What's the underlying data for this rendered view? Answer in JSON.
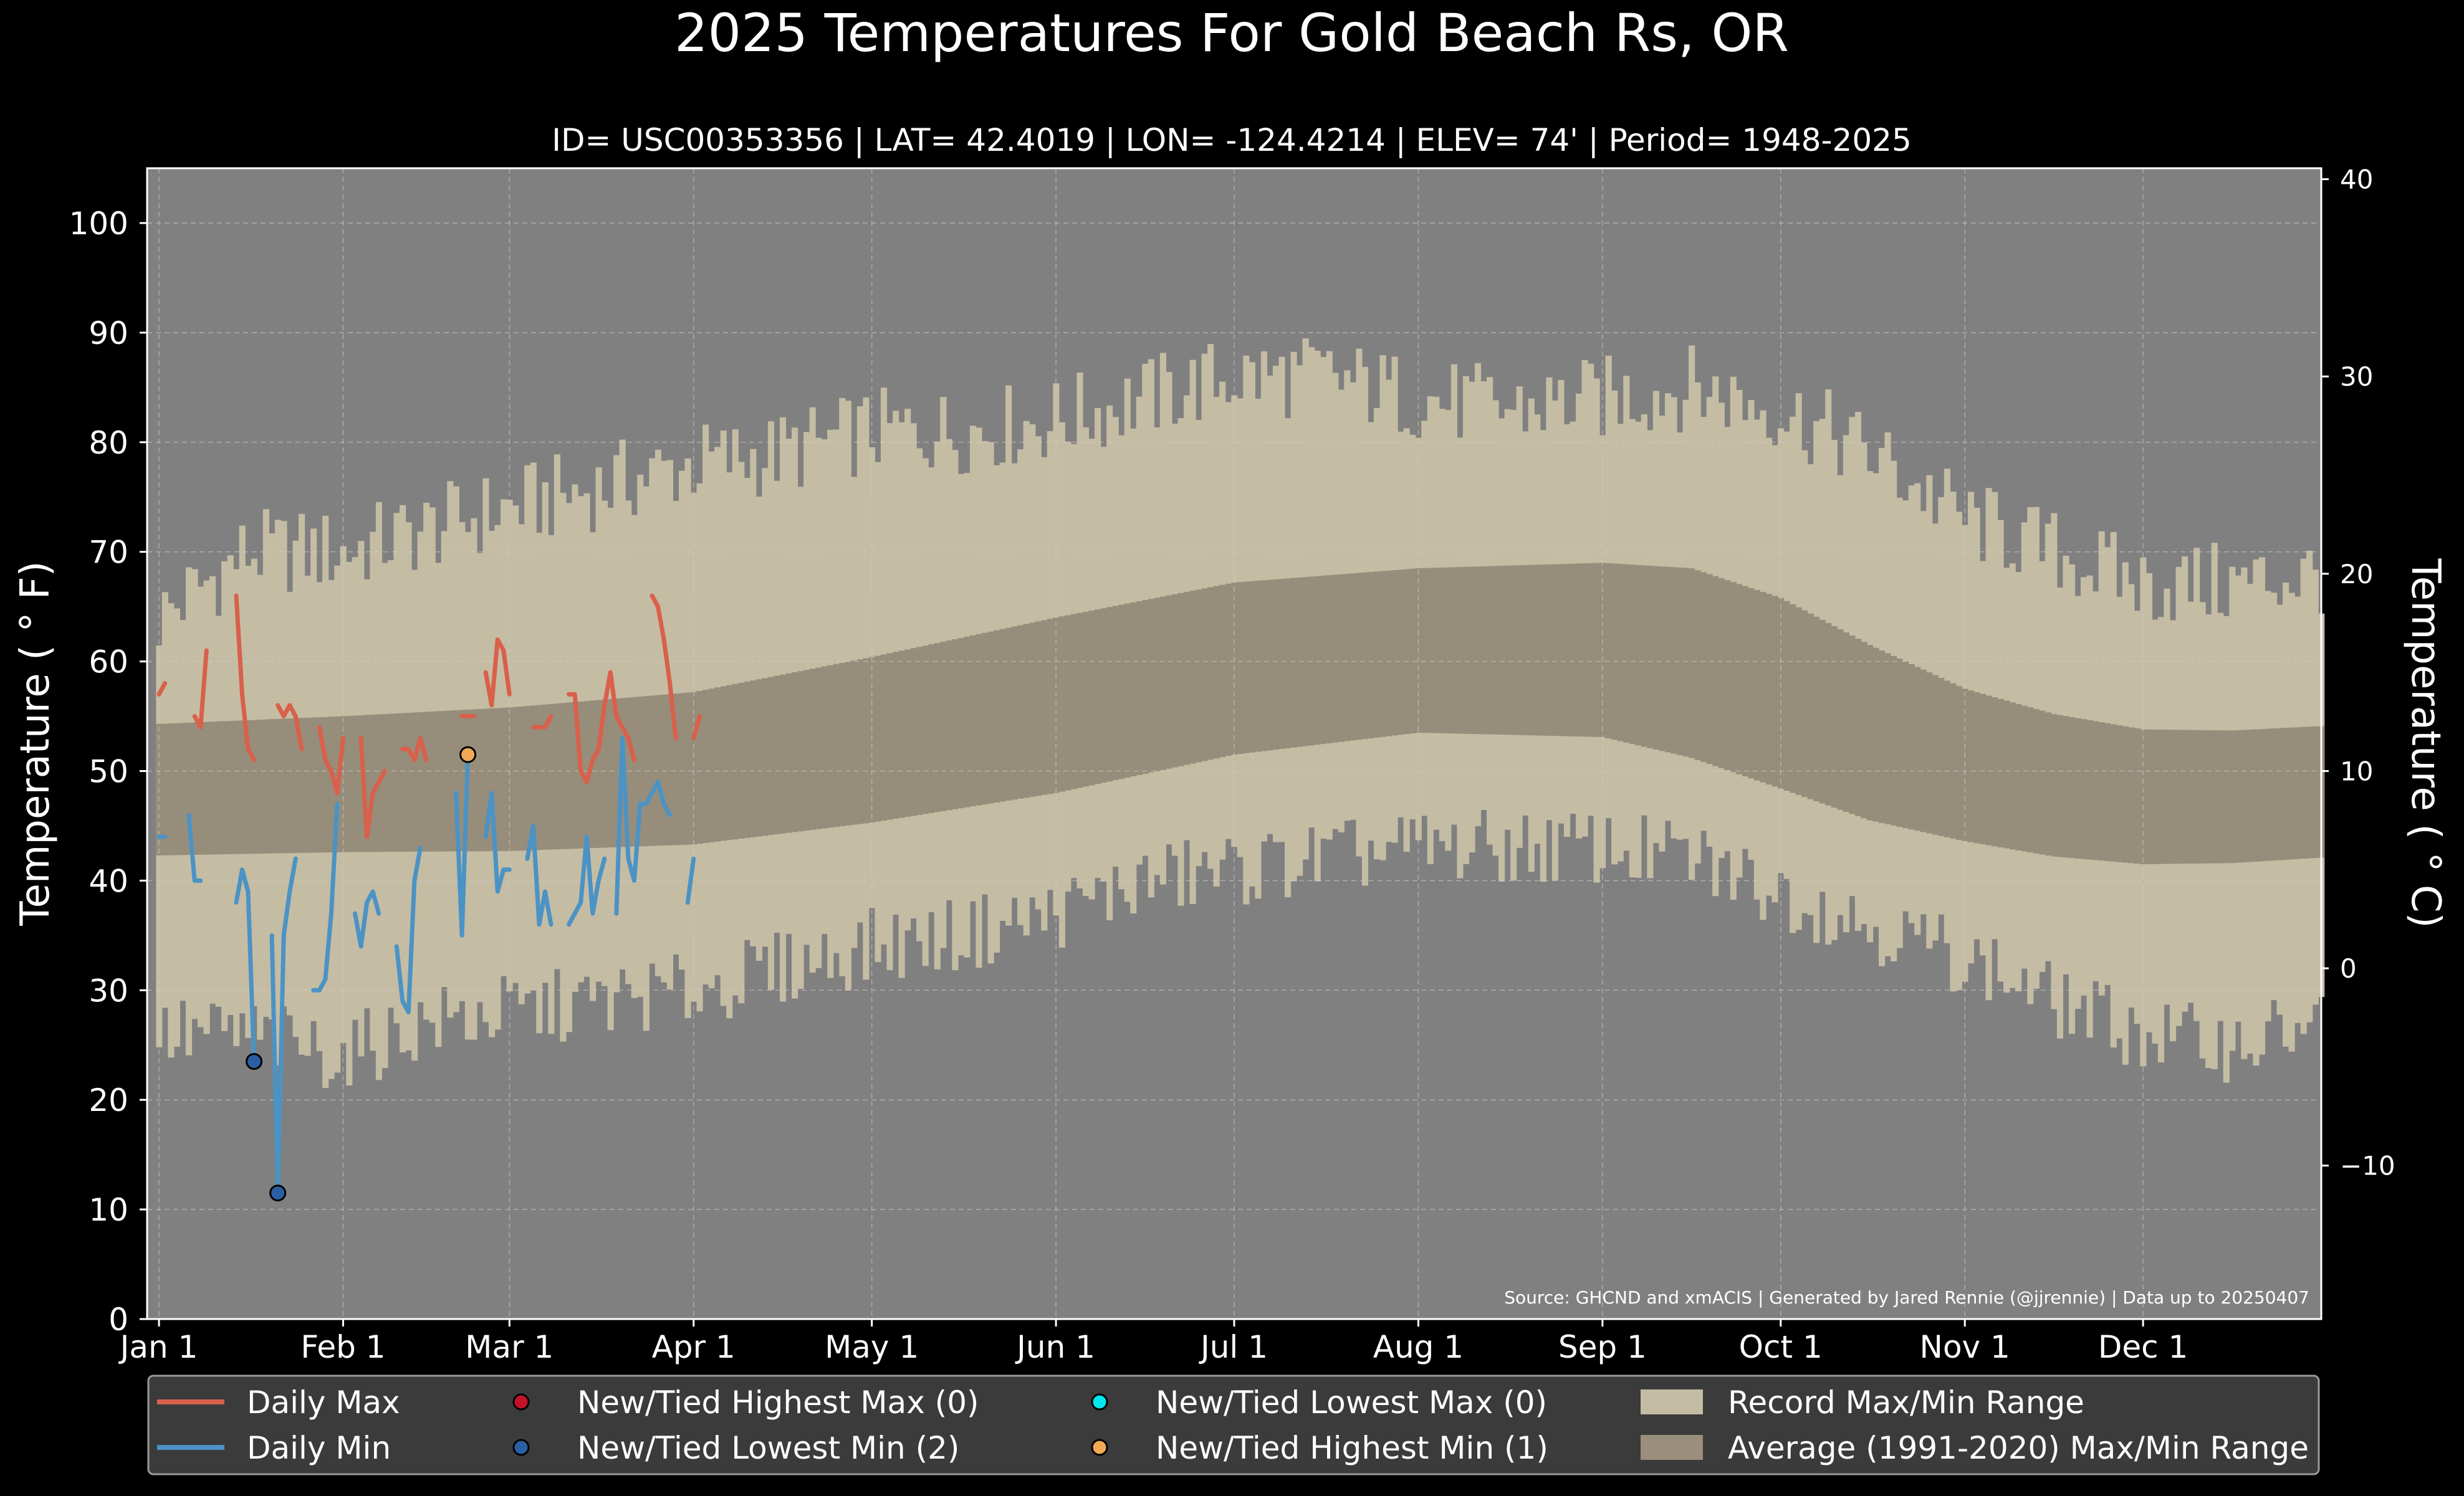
{
  "chart_data": {
    "type": "bar",
    "title": "2025 Temperatures For Gold Beach Rs, OR",
    "subtitle": "ID= USC00353356 | LAT= 42.4019 | LON= -124.4214 | ELEV= 74' | Period= 1948-2025",
    "ylabel": "Temperature ($^\\circ$F)",
    "ylabel_display": "Temperature ( ° F)",
    "y2label_display": "Temperature ( ° C)",
    "source_note": "Source: GHCND and xmACIS | Generated by Jared Rennie (@jjrennie) | Data up to 20250407",
    "ylim": [
      0,
      105
    ],
    "y2lim_c": [
      -17.78,
      40.56
    ],
    "yticks": [
      0,
      10,
      20,
      30,
      40,
      50,
      60,
      70,
      80,
      90,
      100
    ],
    "y2ticks": [
      -10,
      0,
      10,
      20,
      30,
      40
    ],
    "y2tick_labels": [
      "−10",
      "0",
      "10",
      "20",
      "30",
      "40"
    ],
    "xlim_days": [
      -2,
      364
    ],
    "xticks": [
      {
        "label": "Jan 1",
        "day": 0
      },
      {
        "label": "Feb 1",
        "day": 31
      },
      {
        "label": "Mar 1",
        "day": 59
      },
      {
        "label": "Apr 1",
        "day": 90
      },
      {
        "label": "May 1",
        "day": 120
      },
      {
        "label": "Jun 1",
        "day": 151
      },
      {
        "label": "Jul 1",
        "day": 181
      },
      {
        "label": "Aug 1",
        "day": 212
      },
      {
        "label": "Sep 1",
        "day": 243
      },
      {
        "label": "Oct 1",
        "day": 273
      },
      {
        "label": "Nov 1",
        "day": 304
      },
      {
        "label": "Dec 1",
        "day": 334
      }
    ],
    "grid": true,
    "legend_position": "bottom",
    "legend": [
      {
        "label": "Daily Max",
        "kind": "line",
        "color": "#d9604a"
      },
      {
        "label": "Daily Min",
        "kind": "line",
        "color": "#4b93c4"
      },
      {
        "label": "New/Tied Highest Max (0)",
        "kind": "dot",
        "color": "#c4122a"
      },
      {
        "label": "New/Tied Lowest Min (2)",
        "kind": "dot",
        "color": "#2a5fa3"
      },
      {
        "label": "New/Tied Lowest Max (0)",
        "kind": "dot",
        "color": "#00e8ee"
      },
      {
        "label": "New/Tied Highest Min (1)",
        "kind": "dot",
        "color": "#f2a955"
      },
      {
        "label": "Record Max/Min Range",
        "kind": "patch",
        "color": "#c5bca4"
      },
      {
        "label": "Average (1991-2020) Max/Min Range",
        "kind": "patch",
        "color": "#9a8e7c"
      }
    ],
    "colors": {
      "background": "#000000",
      "plot_background": "#808080",
      "record_range": "#c5bca4",
      "normal_range": "#978d7b",
      "daily_max": "#d9604a",
      "daily_min": "#4b93c4",
      "legend_bg": "#3b3b3b"
    },
    "record_max_anchors": [
      [
        0,
        64
      ],
      [
        15,
        70
      ],
      [
        31,
        70
      ],
      [
        45,
        72
      ],
      [
        59,
        74
      ],
      [
        75,
        76
      ],
      [
        90,
        78
      ],
      [
        105,
        79
      ],
      [
        120,
        81
      ],
      [
        135,
        81
      ],
      [
        151,
        82
      ],
      [
        166,
        84
      ],
      [
        181,
        86
      ],
      [
        196,
        86
      ],
      [
        212,
        84
      ],
      [
        227,
        83
      ],
      [
        243,
        84
      ],
      [
        258,
        85
      ],
      [
        273,
        83
      ],
      [
        288,
        79
      ],
      [
        304,
        73
      ],
      [
        319,
        70
      ],
      [
        334,
        67
      ],
      [
        349,
        67
      ],
      [
        364,
        68
      ]
    ],
    "record_min_anchors": [
      [
        0,
        26
      ],
      [
        15,
        26
      ],
      [
        31,
        24
      ],
      [
        45,
        27
      ],
      [
        59,
        28
      ],
      [
        75,
        29
      ],
      [
        90,
        30
      ],
      [
        105,
        32
      ],
      [
        120,
        34
      ],
      [
        135,
        35
      ],
      [
        151,
        37
      ],
      [
        166,
        40
      ],
      [
        181,
        41
      ],
      [
        196,
        42
      ],
      [
        212,
        43
      ],
      [
        227,
        43
      ],
      [
        243,
        43
      ],
      [
        258,
        42
      ],
      [
        273,
        39
      ],
      [
        288,
        36
      ],
      [
        304,
        33
      ],
      [
        319,
        29
      ],
      [
        334,
        26
      ],
      [
        349,
        25
      ],
      [
        364,
        27
      ]
    ],
    "normal_max_anchors": [
      [
        0,
        54.3
      ],
      [
        31,
        55.0
      ],
      [
        59,
        55.8
      ],
      [
        90,
        57.2
      ],
      [
        120,
        60.4
      ],
      [
        151,
        64.0
      ],
      [
        181,
        67.2
      ],
      [
        212,
        68.5
      ],
      [
        243,
        69.0
      ],
      [
        258,
        68.5
      ],
      [
        273,
        65.8
      ],
      [
        288,
        61.5
      ],
      [
        304,
        57.5
      ],
      [
        319,
        55.2
      ],
      [
        334,
        53.8
      ],
      [
        349,
        53.7
      ],
      [
        364,
        54.1
      ]
    ],
    "normal_min_anchors": [
      [
        0,
        42.3
      ],
      [
        31,
        42.6
      ],
      [
        59,
        42.7
      ],
      [
        90,
        43.3
      ],
      [
        120,
        45.3
      ],
      [
        151,
        48.0
      ],
      [
        181,
        51.5
      ],
      [
        212,
        53.5
      ],
      [
        243,
        53.1
      ],
      [
        258,
        51.2
      ],
      [
        273,
        48.4
      ],
      [
        288,
        45.5
      ],
      [
        304,
        43.6
      ],
      [
        319,
        42.2
      ],
      [
        334,
        41.5
      ],
      [
        349,
        41.6
      ],
      [
        364,
        42.1
      ]
    ],
    "series": [
      {
        "name": "Daily Max",
        "values": [
          57,
          58,
          null,
          null,
          null,
          null,
          55,
          54,
          61,
          null,
          null,
          null,
          null,
          66,
          57,
          52,
          51,
          null,
          null,
          null,
          56,
          55,
          56,
          55,
          52,
          null,
          null,
          54,
          51,
          50,
          48,
          53,
          null,
          null,
          53,
          44,
          48,
          49,
          50,
          null,
          null,
          52,
          52,
          51,
          53,
          51,
          null,
          null,
          null,
          null,
          null,
          55,
          55,
          55,
          null,
          59,
          56,
          62,
          61,
          57,
          null,
          null,
          null,
          54,
          54,
          54,
          55,
          null,
          null,
          57,
          57,
          50,
          49,
          51,
          52,
          56,
          59,
          55,
          54,
          53,
          51,
          null,
          null,
          66,
          65,
          62,
          58,
          53,
          null,
          null,
          53,
          55
        ]
      },
      {
        "name": "Daily Min",
        "values": [
          44,
          44,
          null,
          null,
          null,
          46,
          40,
          40,
          null,
          null,
          null,
          null,
          null,
          38,
          41,
          39,
          23.5,
          null,
          null,
          35,
          11.5,
          35,
          39,
          42,
          null,
          null,
          30,
          30,
          31,
          37,
          47,
          null,
          null,
          37,
          34,
          38,
          39,
          37,
          null,
          null,
          34,
          29,
          28,
          40,
          43,
          null,
          null,
          null,
          null,
          null,
          48,
          35,
          51.5,
          null,
          null,
          44,
          48,
          39,
          41,
          41,
          null,
          null,
          42,
          45,
          36,
          39,
          36,
          null,
          null,
          36,
          37,
          38,
          44,
          37,
          40,
          42,
          null,
          37,
          53,
          42,
          40,
          47,
          47,
          48,
          49,
          47,
          46,
          null,
          null,
          38,
          42
        ]
      }
    ],
    "record_events": [
      {
        "type": "New/Tied Lowest Min",
        "day": 16,
        "value": 23.5
      },
      {
        "type": "New/Tied Lowest Min",
        "day": 20,
        "value": 11.5
      },
      {
        "type": "New/Tied Highest Min",
        "day": 52,
        "value": 51.5
      }
    ]
  }
}
